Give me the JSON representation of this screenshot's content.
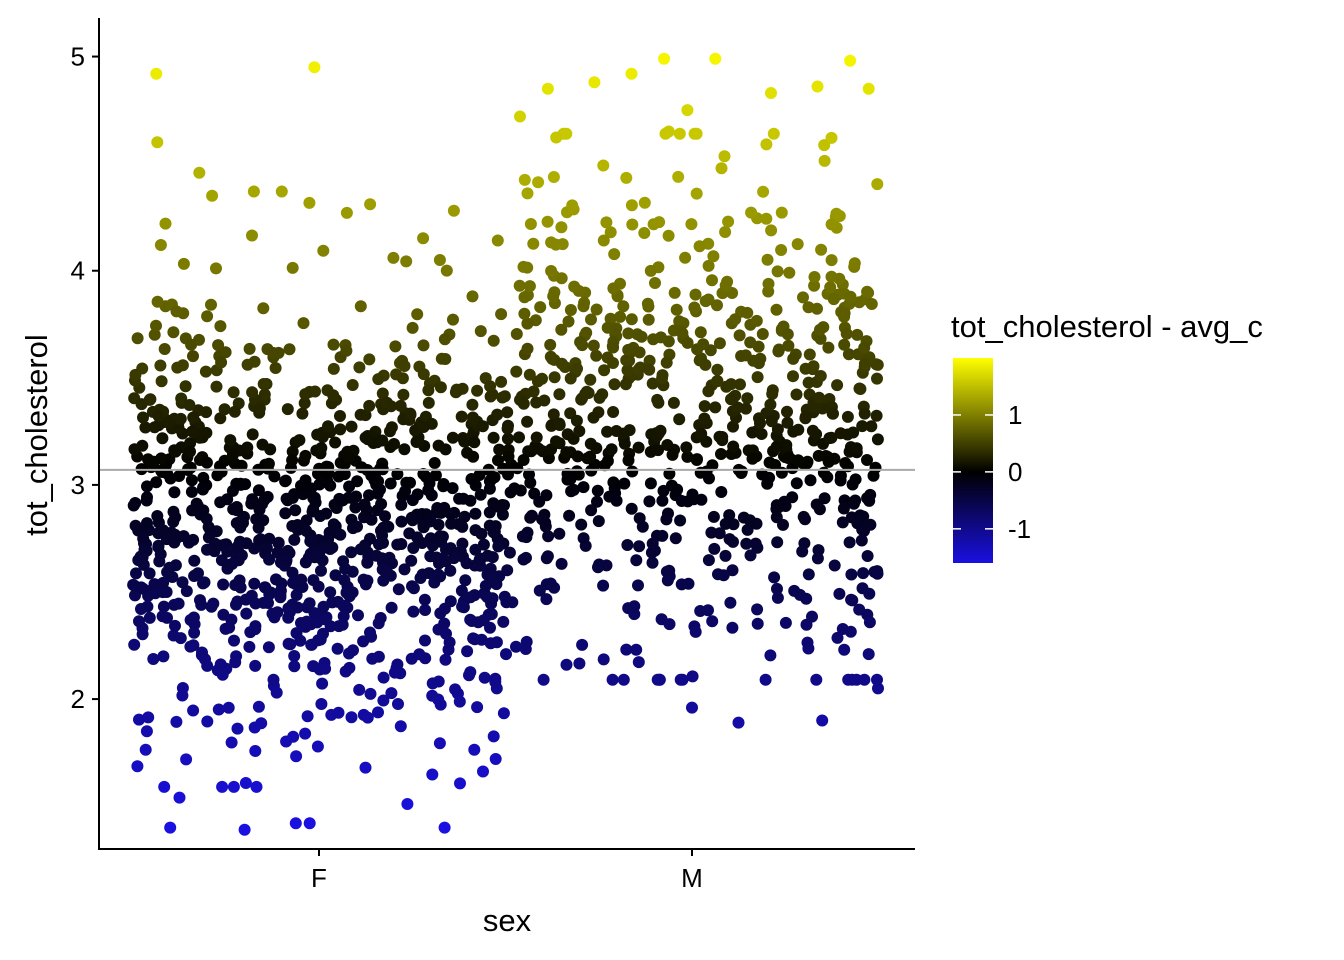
{
  "chart_data": {
    "type": "scatter",
    "subtype": "jitter",
    "xlabel": "sex",
    "ylabel": "tot_cholesterol",
    "categories": [
      "F",
      "M"
    ],
    "ylim": [
      1.3,
      5.18
    ],
    "yticks": [
      2,
      3,
      4,
      5
    ],
    "yticklabels": [
      "2",
      "3",
      "4",
      "5"
    ],
    "reference_line": {
      "y": 3.07,
      "label": "avg_c",
      "color": "#aaaaaa"
    },
    "legend": {
      "title": "tot_cholesterol - avg_c",
      "placement": "right",
      "range": [
        -1.6,
        2.0
      ],
      "ticks": [
        1,
        0,
        -1
      ],
      "tick_labels": [
        "1",
        "0",
        "-1"
      ],
      "colors": {
        "low": "#1a10e0",
        "mid": "#000000",
        "high": "#ffff00"
      }
    },
    "series": [
      {
        "name": "F",
        "category": "F",
        "n": 980,
        "jitter_width": 0.4,
        "highlighted": [
          {
            "offset": -0.35,
            "y": 4.92
          },
          {
            "offset": -0.01,
            "y": 4.95
          },
          {
            "offset": -0.33,
            "y": 4.22
          },
          {
            "offset": -0.34,
            "y": 4.12
          },
          {
            "offset": -0.23,
            "y": 4.35
          },
          {
            "offset": -0.14,
            "y": 4.37
          },
          {
            "offset": -0.08,
            "y": 4.37
          },
          {
            "offset": 0.06,
            "y": 4.27
          },
          {
            "offset": 0.11,
            "y": 4.31
          },
          {
            "offset": 0.29,
            "y": 4.28
          },
          {
            "offset": 0.16,
            "y": 4.06
          },
          {
            "offset": 0.26,
            "y": 4.05
          },
          {
            "offset": -0.37,
            "y": 1.85
          },
          {
            "offset": -0.32,
            "y": 1.4
          },
          {
            "offset": -0.3,
            "y": 1.54
          },
          {
            "offset": -0.16,
            "y": 1.39
          },
          {
            "offset": -0.05,
            "y": 1.42
          },
          {
            "offset": -0.02,
            "y": 1.42
          },
          {
            "offset": 0.19,
            "y": 1.51
          },
          {
            "offset": 0.27,
            "y": 1.4
          },
          {
            "offset": 0.1,
            "y": 1.68
          },
          {
            "offset": 0.38,
            "y": 1.72
          }
        ],
        "mean": 2.82,
        "sd": 0.5,
        "ymin": 1.39,
        "ymax": 4.95
      },
      {
        "name": "M",
        "category": "M",
        "n": 760,
        "jitter_width": 0.4,
        "highlighted": [
          {
            "offset": -0.31,
            "y": 4.85
          },
          {
            "offset": -0.06,
            "y": 4.99
          },
          {
            "offset": 0.05,
            "y": 4.99
          },
          {
            "offset": 0.34,
            "y": 4.98
          },
          {
            "offset": -0.21,
            "y": 4.88
          },
          {
            "offset": -0.13,
            "y": 4.92
          },
          {
            "offset": -0.01,
            "y": 4.75
          },
          {
            "offset": 0.17,
            "y": 4.83
          },
          {
            "offset": 0.27,
            "y": 4.86
          },
          {
            "offset": 0.38,
            "y": 4.85
          },
          {
            "offset": -0.05,
            "y": 4.65
          },
          {
            "offset": -0.37,
            "y": 4.72
          },
          {
            "offset": 0.16,
            "y": 4.59
          },
          {
            "offset": 0.3,
            "y": 4.62
          },
          {
            "offset": -0.4,
            "y": 2.21
          },
          {
            "offset": -0.27,
            "y": 2.16
          },
          {
            "offset": -0.12,
            "y": 2.23
          },
          {
            "offset": 0.0,
            "y": 1.96
          },
          {
            "offset": 0.1,
            "y": 1.89
          },
          {
            "offset": 0.28,
            "y": 1.9
          },
          {
            "offset": 0.38,
            "y": 2.21
          },
          {
            "offset": 0.4,
            "y": 2.05
          }
        ],
        "mean": 3.3,
        "sd": 0.55,
        "ymin": 1.89,
        "ymax": 4.99
      }
    ]
  }
}
